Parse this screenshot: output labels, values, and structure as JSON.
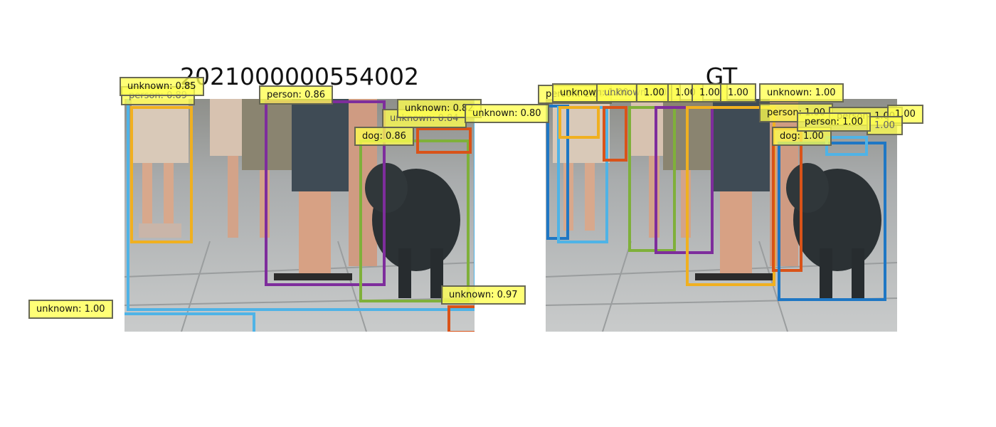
{
  "figure": {
    "prediction_title": "2021000000554002",
    "ground_truth_title": "GT"
  },
  "colors": {
    "sky_blue": "#4fb3e6",
    "blue": "#1f77c4",
    "yellow": "#f0b020",
    "purple": "#7e2d9c",
    "green": "#7fb03a",
    "orange": "#d95319",
    "label_fill": "#ffff66"
  },
  "prediction_labels": [
    "unknown: 0.85",
    "person: 0.89",
    "person: 0.86",
    "unknown: 0.82",
    "unknown: 0.84",
    "unknown: 0.80",
    "dog: 0.86",
    "unknown: 0.97",
    "unknown: 1.00"
  ],
  "gt_labels": [
    "person: 1.00",
    "unknown: 1.00",
    "unknown: 1.00",
    "1.00",
    "1.00",
    "1.00",
    "1.00",
    "unknown: 1.00",
    "person: 1.00",
    "person: 1.00",
    "dog: 1.00",
    "person: 1.00",
    "1.00",
    "1.00"
  ]
}
